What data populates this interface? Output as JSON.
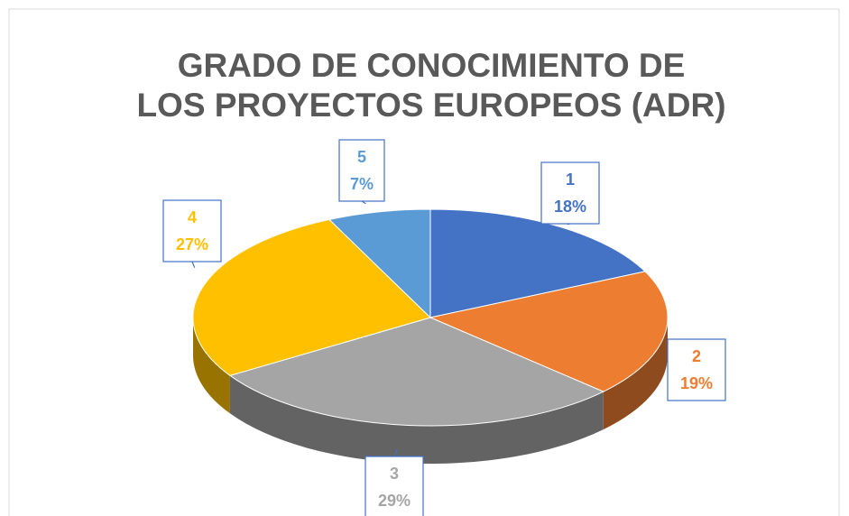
{
  "chart_data": {
    "type": "pie",
    "title": "GRADO DE CONOCIMIENTO DE LOS PROYECTOS EUROPEOS (ADR)",
    "categories": [
      "1",
      "2",
      "3",
      "4",
      "5"
    ],
    "values": [
      18,
      19,
      29,
      27,
      7
    ],
    "value_labels": [
      "18%",
      "19%",
      "29%",
      "27%",
      "7%"
    ],
    "colors": [
      "#4472c4",
      "#ed7d31",
      "#a5a5a5",
      "#ffc000",
      "#5b9bd5"
    ]
  }
}
